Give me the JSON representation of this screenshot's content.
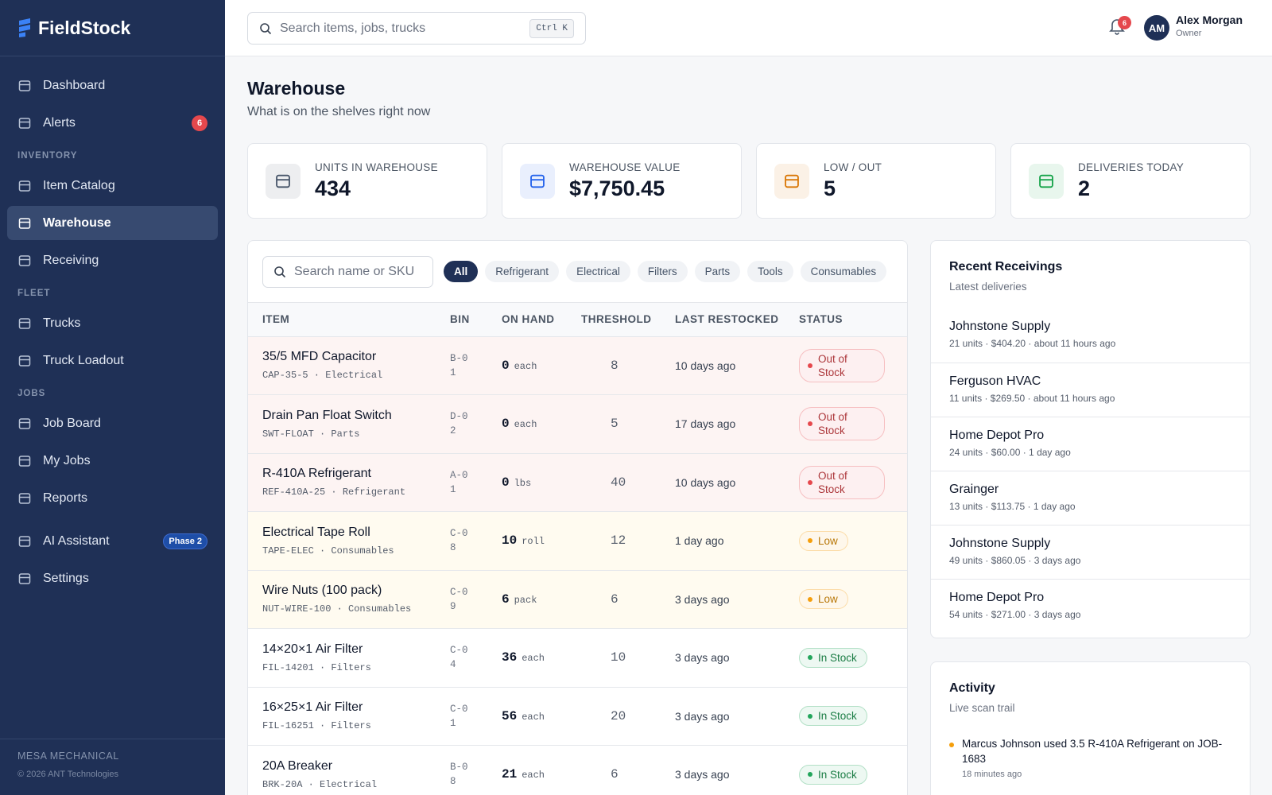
{
  "sidebar": {
    "brand": "FieldStock",
    "groups": [
      {
        "items": [
          {
            "label": "Dashboard"
          },
          {
            "label": "Alerts",
            "badge": 6
          }
        ]
      },
      {
        "title": "INVENTORY",
        "items": [
          {
            "label": "Item Catalog"
          },
          {
            "label": "Warehouse",
            "active": true
          },
          {
            "label": "Receiving"
          }
        ]
      },
      {
        "title": "FLEET",
        "items": [
          {
            "label": "Trucks"
          },
          {
            "label": "Truck Loadout"
          }
        ]
      },
      {
        "title": "JOBS",
        "items": [
          {
            "label": "Job Board"
          },
          {
            "label": "My Jobs"
          },
          {
            "label": "Reports"
          }
        ]
      },
      {
        "items": [
          {
            "label": "AI Assistant",
            "badge": "Phase 2"
          },
          {
            "label": "Settings"
          }
        ]
      }
    ],
    "footer": {
      "org": "MESA MECHANICAL",
      "copyright": "© 2026 ANT Technologies"
    }
  },
  "topbar": {
    "search_placeholder": "Search items, jobs, trucks",
    "shortcut": "Ctrl K",
    "notifications": 6,
    "user": {
      "initials": "AM",
      "name": "Alex Morgan",
      "role": "Owner"
    }
  },
  "header": {
    "title": "Warehouse",
    "subtitle": "What is on the shelves right now"
  },
  "stats": [
    {
      "label": "UNITS IN WAREHOUSE",
      "value": 434,
      "color": "#475569"
    },
    {
      "label": "WAREHOUSE VALUE",
      "value": "$7,750.45",
      "color": "#2563eb"
    },
    {
      "label": "LOW / OUT",
      "value": 5,
      "color": "#d97706"
    },
    {
      "label": "DELIVERIES TODAY",
      "value": 2,
      "color": "#16a34a"
    }
  ],
  "inventory": {
    "search_placeholder": "Search name or SKU",
    "filters": [
      "All",
      "Refrigerant",
      "Electrical",
      "Filters",
      "Parts",
      "Tools",
      "Consumables"
    ],
    "columns": [
      "ITEM",
      "BIN",
      "ON HAND",
      "THRESHOLD",
      "LAST RESTOCKED",
      "STATUS"
    ],
    "rows": [
      {
        "name": "35/5 MFD Capacitor",
        "sku": "CAP-35-5 · Electrical",
        "bin": "B-01",
        "on_hand": 0,
        "unit": "each",
        "threshold": 8,
        "last_restocked": "10 days ago",
        "status": "Out of Stock",
        "status_color": "#e5484d",
        "row_color": "#fdf4f3"
      },
      {
        "name": "Drain Pan Float Switch",
        "sku": "SWT-FLOAT · Parts",
        "bin": "D-02",
        "on_hand": 0,
        "unit": "each",
        "threshold": 5,
        "last_restocked": "17 days ago",
        "status": "Out of Stock",
        "status_color": "#e5484d",
        "row_color": "#fdf4f3"
      },
      {
        "name": "R-410A Refrigerant",
        "sku": "REF-410A-25 · Refrigerant",
        "bin": "A-01",
        "on_hand": 0,
        "unit": "lbs",
        "threshold": 40,
        "last_restocked": "10 days ago",
        "status": "Out of Stock",
        "status_color": "#e5484d",
        "row_color": "#fdf4f3"
      },
      {
        "name": "Electrical Tape Roll",
        "sku": "TAPE-ELEC · Consumables",
        "bin": "C-08",
        "on_hand": 10,
        "unit": "roll",
        "threshold": 12,
        "last_restocked": "1 day ago",
        "status": "Low",
        "status_color": "#f59e0b",
        "row_color": "#fffbf0"
      },
      {
        "name": "Wire Nuts (100 pack)",
        "sku": "NUT-WIRE-100 · Consumables",
        "bin": "C-09",
        "on_hand": 6,
        "unit": "pack",
        "threshold": 6,
        "last_restocked": "3 days ago",
        "status": "Low",
        "status_color": "#f59e0b",
        "row_color": "#fffbf0"
      },
      {
        "name": "14×20×1 Air Filter",
        "sku": "FIL-14201 · Filters",
        "bin": "C-04",
        "on_hand": 36,
        "unit": "each",
        "threshold": 10,
        "last_restocked": "3 days ago",
        "status": "In Stock",
        "status_color": "#22a55b",
        "row_color": "#ffffff"
      },
      {
        "name": "16×25×1 Air Filter",
        "sku": "FIL-16251 · Filters",
        "bin": "C-01",
        "on_hand": 56,
        "unit": "each",
        "threshold": 20,
        "last_restocked": "3 days ago",
        "status": "In Stock",
        "status_color": "#22a55b",
        "row_color": "#ffffff"
      },
      {
        "name": "20A Breaker",
        "sku": "BRK-20A · Electrical",
        "bin": "B-08",
        "on_hand": 21,
        "unit": "each",
        "threshold": 6,
        "last_restocked": "3 days ago",
        "status": "In Stock",
        "status_color": "#22a55b",
        "row_color": "#ffffff"
      }
    ]
  },
  "receivings": {
    "title": "Recent Receivings",
    "subtitle": "Latest deliveries",
    "items": [
      {
        "supplier": "Johnstone Supply",
        "meta": "21 units · $404.20 · about 11 hours ago"
      },
      {
        "supplier": "Ferguson HVAC",
        "meta": "11 units · $269.50 · about 11 hours ago"
      },
      {
        "supplier": "Home Depot Pro",
        "meta": "24 units · $60.00 · 1 day ago"
      },
      {
        "supplier": "Grainger",
        "meta": "13 units · $113.75 · 1 day ago"
      },
      {
        "supplier": "Johnstone Supply",
        "meta": "49 units · $860.05 · 3 days ago"
      },
      {
        "supplier": "Home Depot Pro",
        "meta": "54 units · $271.00 · 3 days ago"
      }
    ]
  },
  "activity": {
    "title": "Activity",
    "subtitle": "Live scan trail",
    "items": [
      {
        "text": "Marcus Johnson used 3.5 R-410A Refrigerant on JOB-1683",
        "time": "18 minutes ago",
        "color": "#f59e0b"
      }
    ]
  }
}
